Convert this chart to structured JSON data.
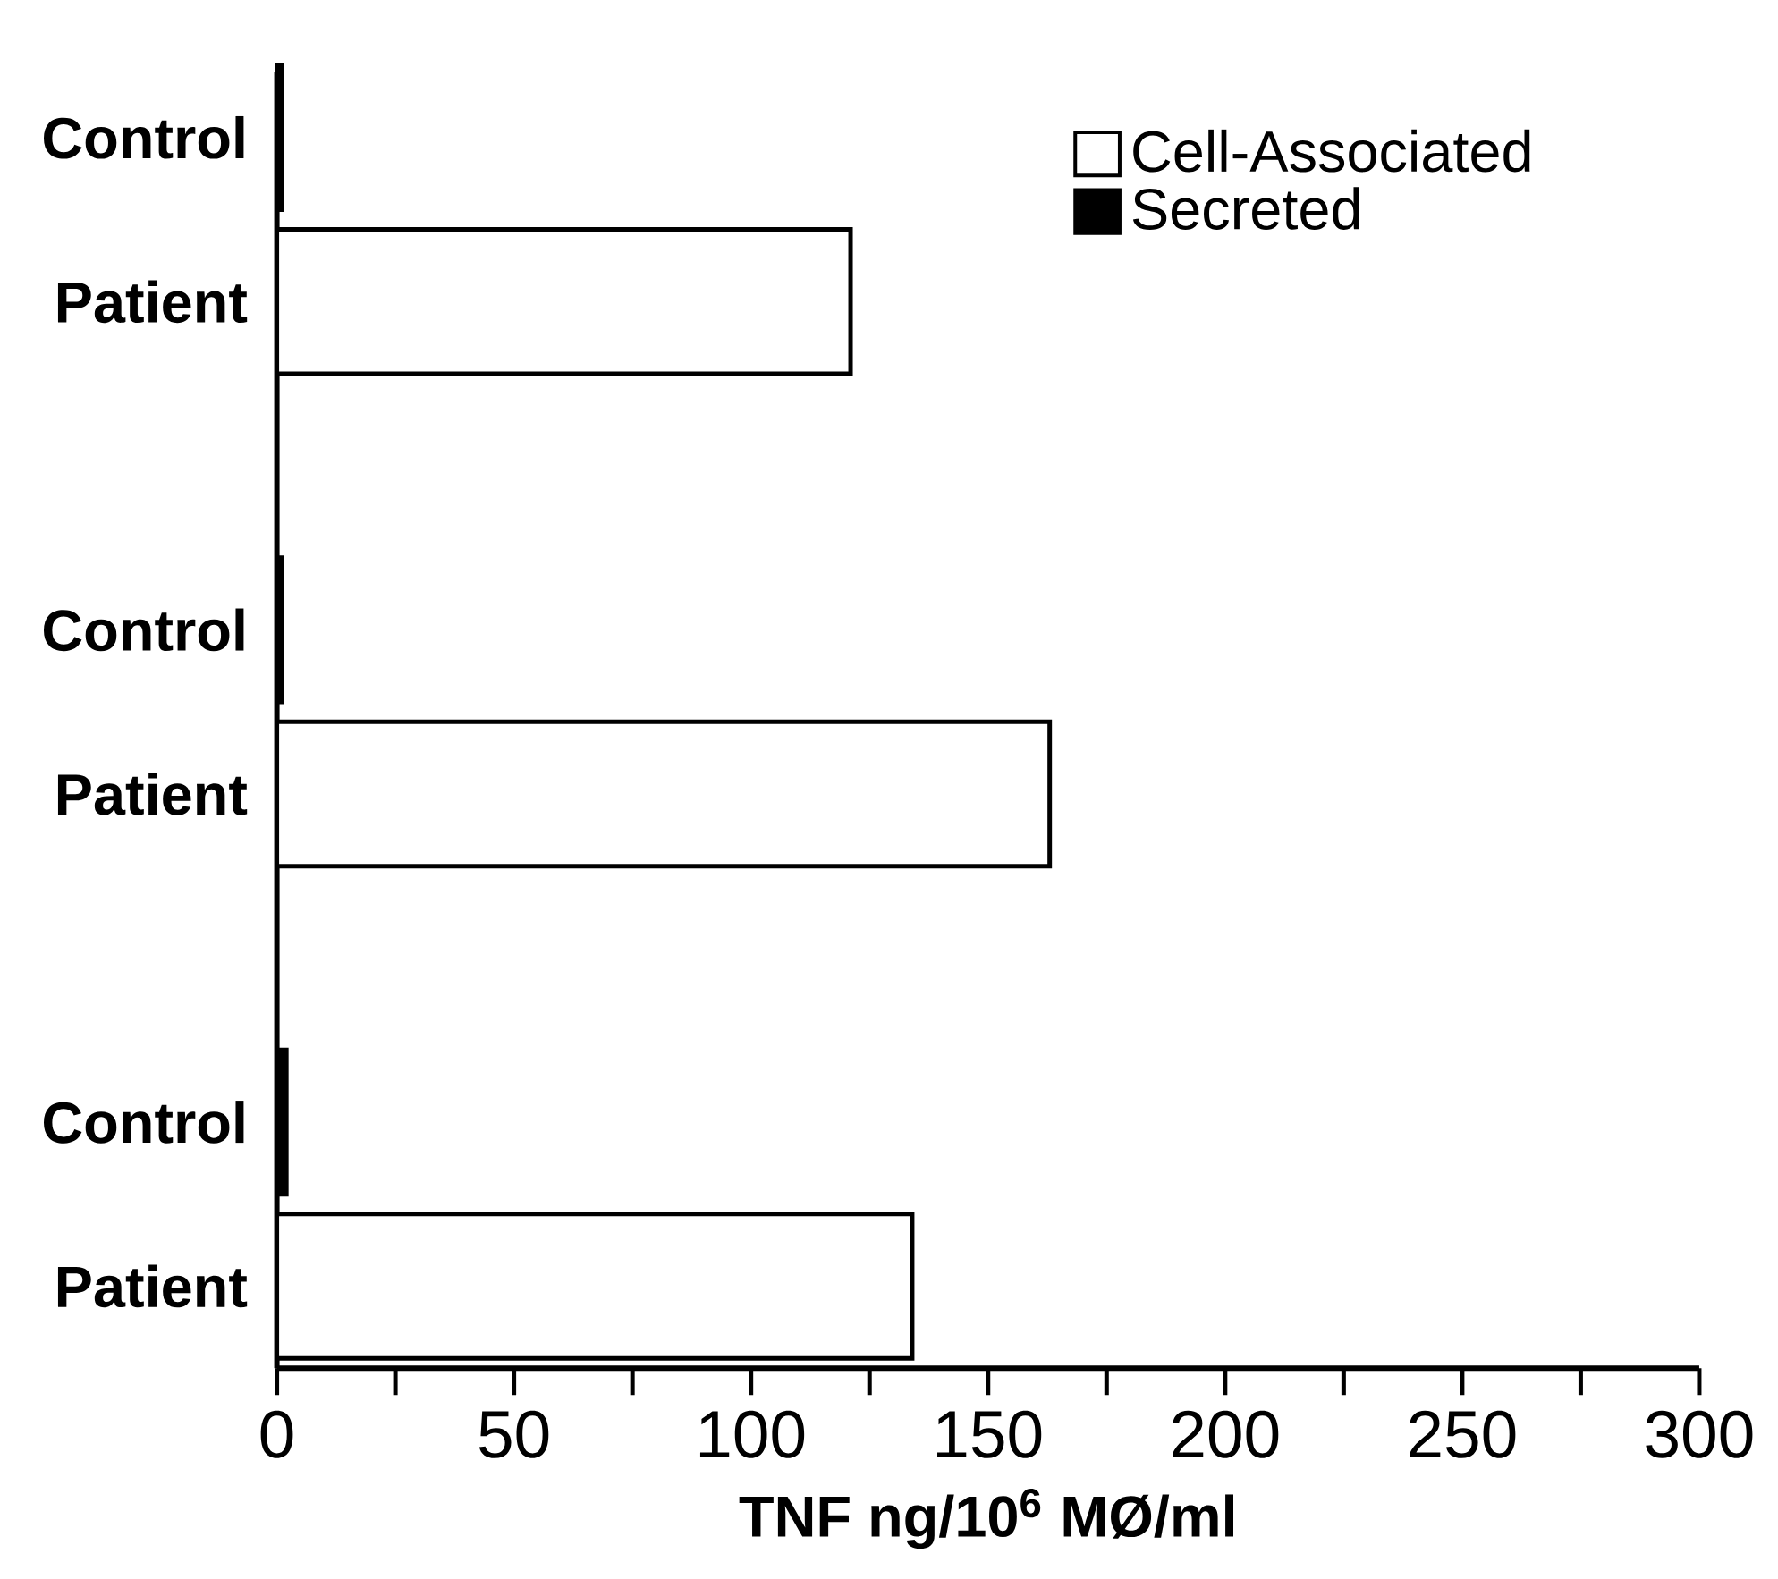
{
  "chart_data": {
    "type": "bar",
    "orientation": "horizontal",
    "xlabel": "TNF   ng/10$^{6}$ MØ/ml",
    "categories": [
      "Control",
      "Patient",
      null,
      "Control",
      "Patient",
      null,
      "Control",
      "Patient"
    ],
    "series": [
      {
        "name": "Cell-Associated",
        "color": "#ffffff",
        "values": [
          null,
          121,
          null,
          null,
          163,
          null,
          null,
          134
        ]
      },
      {
        "name": "Secreted",
        "color": "#000000",
        "values": [
          1,
          null,
          null,
          1,
          null,
          null,
          2,
          null
        ]
      }
    ],
    "xlim": [
      0,
      300
    ],
    "xticks": [
      0,
      {
        "value": 25,
        "label": null
      },
      50,
      {
        "value": 75,
        "label": null
      },
      100,
      {
        "value": 125,
        "label": null
      },
      150,
      {
        "value": 175,
        "label": null
      },
      200,
      {
        "value": 225,
        "label": null
      },
      250,
      {
        "value": 275,
        "label": null
      },
      300
    ],
    "legend": "top right",
    "grid": false
  }
}
